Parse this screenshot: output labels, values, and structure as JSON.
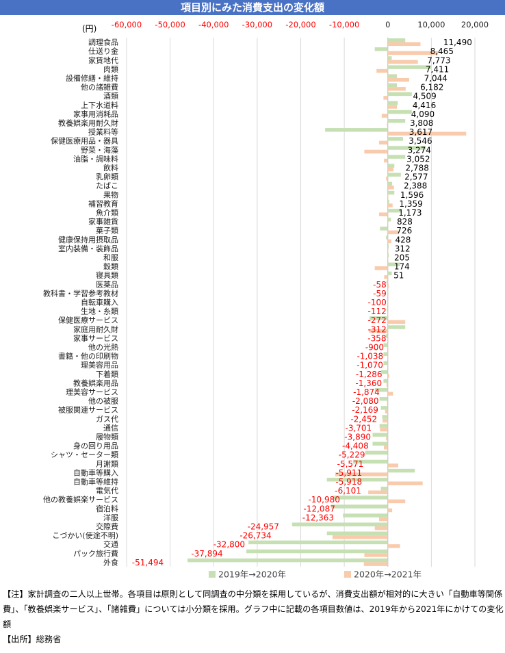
{
  "title": "項目別にみた消費支出の変化額",
  "unit_label": "(円)",
  "note": "【注】家計調査の二人以上世帯。各項目は原則として同調査の中分類を採用しているが、消費支出額が相対的に大きい「自動車等関係費」、「教養娯楽サービス」、「諸雑費」については小分類を採用。グラフ中に記載の各項目数値は、2019年から2021年にかけての変化額",
  "source": "【出所】総務省",
  "colors": {
    "series1": "#c6e0b4",
    "series2": "#f8cbad",
    "positive_label": "#000000",
    "negative_label": "#ff0000",
    "tick_label": "#ff0000",
    "grid": "#d9d9d9",
    "title_bg": "#4a72c4"
  },
  "chart_data": {
    "type": "bar",
    "orientation": "horizontal",
    "xlim": [
      -60000,
      20000
    ],
    "x_ticks": [
      -60000,
      -50000,
      -40000,
      -30000,
      -20000,
      -10000,
      0,
      10000,
      20000
    ],
    "x_tick_labels": [
      "-60,000",
      "-50,000",
      "-40,000",
      "-30,000",
      "-20,000",
      "-10,000",
      "0",
      "10,000",
      "20,000"
    ],
    "grid": true,
    "legend_position": "bottom",
    "categories": [
      "調理食品",
      "仕送り金",
      "家賃地代",
      "肉類",
      "設備修繕・維持",
      "他の諸雑費",
      "酒類",
      "上下水道料",
      "家事用消耗品",
      "教養娯楽用耐久財",
      "授業料等",
      "保健医療用品・器具",
      "野菜・海藻",
      "油脂・調味料",
      "飲料",
      "乳卵類",
      "たばこ",
      "果物",
      "補習教育",
      "魚介類",
      "家事雑貨",
      "菓子類",
      "健康保持用摂取品",
      "室内装備・装飾品",
      "和服",
      "穀類",
      "寝具類",
      "医薬品",
      "教科書・学習参考教材",
      "自転車購入",
      "生地・糸類",
      "保健医療サービス",
      "家庭用耐久財",
      "家事サービス",
      "他の光熱",
      "書籍・他の印刷物",
      "理美容用品",
      "下着類",
      "教養娯楽用品",
      "理美容サービス",
      "他の被服",
      "被服関連サービス",
      "ガス代",
      "通信",
      "履物類",
      "身の回り用品",
      "シャツ・セーター類",
      "月謝類",
      "自動車等購入",
      "自動車等維持",
      "電気代",
      "他の教養娯楽サービス",
      "宿泊料",
      "洋服",
      "交際費",
      "こづかい(使途不明)",
      "交通",
      "パック旅行費",
      "外食"
    ],
    "totals": [
      11490,
      8465,
      7773,
      7411,
      7044,
      6182,
      4509,
      4416,
      4090,
      3808,
      3617,
      3546,
      3274,
      3052,
      2788,
      2577,
      2388,
      1596,
      1359,
      1173,
      828,
      726,
      428,
      312,
      205,
      174,
      51,
      -58,
      -59,
      -100,
      -112,
      -272,
      -312,
      -358,
      -900,
      -1038,
      -1070,
      -1286,
      -1360,
      -1874,
      -2080,
      -2169,
      -2452,
      -3701,
      -3890,
      -4408,
      -5229,
      -5571,
      -5911,
      -5918,
      -6101,
      -10980,
      -12087,
      -12363,
      -24957,
      -26734,
      -32800,
      -37894,
      -51494
    ],
    "total_labels": [
      "11,490",
      "8,465",
      "7,773",
      "7,411",
      "7,044",
      "6,182",
      "4,509",
      "4,416",
      "4,090",
      "3,808",
      "3,617",
      "3,546",
      "3,274",
      "3,052",
      "2,788",
      "2,577",
      "2,388",
      "1,596",
      "1,359",
      "1,173",
      "828",
      "726",
      "428",
      "312",
      "205",
      "174",
      "51",
      "-58",
      "-59",
      "-100",
      "-112",
      "-272",
      "-312",
      "-358",
      "-900",
      "-1,038",
      "-1,070",
      "-1,286",
      "-1,360",
      "-1,874",
      "-2,080",
      "-2,169",
      "-2,452",
      "-3,701",
      "-3,890",
      "-4,408",
      "-5,229",
      "-5,571",
      "-5,911",
      "-5,918",
      "-6,101",
      "-10,980",
      "-12,087",
      "-12,363",
      "-24,957",
      "-26,734",
      "-32,800",
      "-37,894",
      "-51,494"
    ],
    "series": [
      {
        "name": "2019年→2020年",
        "values": [
          4000,
          -3000,
          900,
          10000,
          2100,
          2100,
          5500,
          2300,
          5500,
          4000,
          -14400,
          3500,
          8700,
          4000,
          1500,
          3000,
          1000,
          1500,
          300,
          3200,
          700,
          -1800,
          -400,
          200,
          200,
          2800,
          900,
          -300,
          -50,
          -100,
          -200,
          -4200,
          4000,
          -500,
          -1000,
          -1000,
          -1000,
          -1500,
          -1000,
          -3000,
          -1900,
          -1600,
          -1300,
          -1900,
          -3500,
          -3500,
          -5200,
          -8000,
          6200,
          -14000,
          -1600,
          -12500,
          -13000,
          -10300,
          -22000,
          -14000,
          -32000,
          -32500,
          -46000
        ]
      },
      {
        "name": "2020年→2021年",
        "values": [
          7500,
          11500,
          6900,
          -2600,
          4900,
          4100,
          -1000,
          2100,
          -1400,
          -200,
          18000,
          -2000,
          -5400,
          -900,
          1300,
          -400,
          1400,
          100,
          1100,
          -2000,
          100,
          2500,
          800,
          100,
          0,
          -3000,
          -850,
          200,
          -9,
          0,
          100,
          4000,
          -4300,
          100,
          100,
          0,
          -100,
          300,
          -300,
          1200,
          -200,
          -600,
          -1200,
          -1800,
          -400,
          -900,
          -50,
          2400,
          -12100,
          8000,
          -4500,
          4000,
          1000,
          -2000,
          -3000,
          -12700,
          2800,
          -5400,
          -5500
        ]
      }
    ]
  }
}
